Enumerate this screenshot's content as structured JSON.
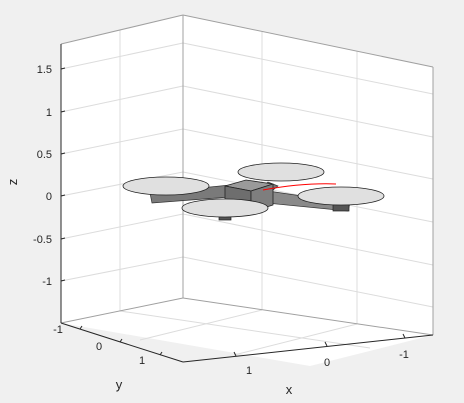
{
  "chart_data": {
    "type": "3d-scene",
    "title": "",
    "xlabel": "x",
    "ylabel": "y",
    "zlabel": "z",
    "x_ticks": [
      "1",
      "0",
      "-1"
    ],
    "y_ticks": [
      "-1",
      "0",
      "1"
    ],
    "z_ticks": [
      "1.5",
      "1",
      "0.5",
      "0",
      "-0.5",
      "-1"
    ],
    "zlim": [
      -1.3,
      1.8
    ],
    "grid": true,
    "objects": [
      {
        "name": "quadrotor-body",
        "shape": "box",
        "color": "#808080",
        "center_z": 0
      },
      {
        "name": "rotor-disk",
        "shape": "disk",
        "color": "#e0e0e0",
        "count": 4
      },
      {
        "name": "trajectory",
        "shape": "line",
        "color": "#ff0000"
      }
    ]
  }
}
